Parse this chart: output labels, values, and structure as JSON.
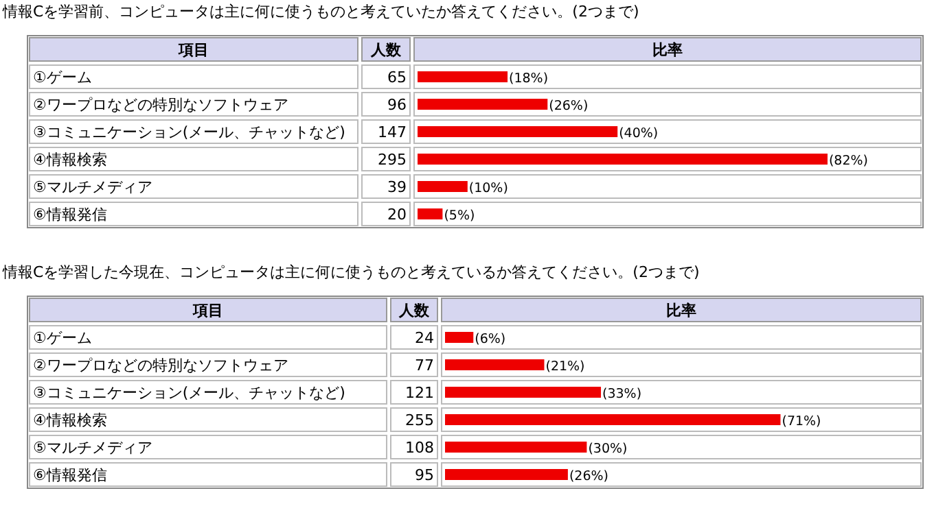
{
  "chart_data": [
    {
      "type": "bar",
      "orientation": "horizontal",
      "title": "情報Cを学習前、コンピュータは主に何に使うものと考えていたか答えてください。(2つまで)",
      "ylabel": "項目",
      "xlabel": "比率",
      "tick_labels": "y",
      "xlim": [
        0,
        100
      ],
      "color": "#ee0000",
      "categories": [
        "①ゲーム",
        "②ワープロなどの特別なソフトウェア",
        "③コミュニケーション(メール、チャットなど)",
        "④情報検索",
        "⑤マルチメディア",
        "⑥情報発信"
      ],
      "values": [
        18,
        26,
        40,
        82,
        10,
        5
      ],
      "value_labels": [
        "(18%)",
        "(26%)",
        "(40%)",
        "(82%)",
        "(10%)",
        "(5%)"
      ],
      "annotations": [
        "人数",
        "65",
        "96",
        "147",
        "295",
        "39",
        "20"
      ]
    },
    {
      "type": "bar",
      "orientation": "horizontal",
      "title": "情報Cを学習した今現在、コンピュータは主に何に使うものと考えているか答えてください。(2つまで)",
      "ylabel": "項目",
      "xlabel": "比率",
      "tick_labels": "y",
      "xlim": [
        0,
        100
      ],
      "color": "#ee0000",
      "categories": [
        "①ゲーム",
        "②ワープロなどの特別なソフトウェア",
        "③コミュニケーション(メール、チャットなど)",
        "④情報検索",
        "⑤マルチメディア",
        "⑥情報発信"
      ],
      "values": [
        6,
        21,
        33,
        71,
        30,
        26
      ],
      "value_labels": [
        "(6%)",
        "(21%)",
        "(33%)",
        "(71%)",
        "(30%)",
        "(26%)"
      ],
      "annotations": [
        "人数",
        "24",
        "77",
        "121",
        "255",
        "108",
        "95"
      ]
    }
  ]
}
